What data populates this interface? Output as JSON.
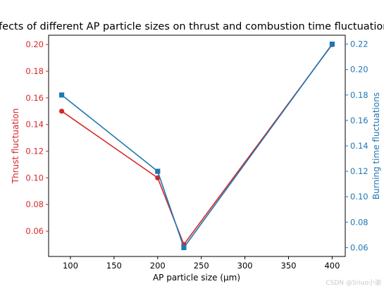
{
  "chart_data": {
    "type": "line",
    "title": "Effects of different AP particle sizes on thrust and combustion time fluctuations",
    "xlabel": "AP particle size (μm)",
    "ylabel_left": "Thrust fluctuation",
    "ylabel_right": "Burning time fluctuations",
    "xlim": [
      75,
      415
    ],
    "ylim_left": [
      0.041,
      0.207
    ],
    "ylim_right": [
      0.053,
      0.227
    ],
    "x_ticks": [
      100,
      150,
      200,
      250,
      300,
      350,
      400
    ],
    "y_left_ticks": [
      0.06,
      0.08,
      0.1,
      0.12,
      0.14,
      0.16,
      0.18,
      0.2
    ],
    "y_right_ticks": [
      0.06,
      0.08,
      0.1,
      0.12,
      0.14,
      0.16,
      0.18,
      0.2,
      0.22
    ],
    "grid": false,
    "series": [
      {
        "axis": "left",
        "color": "#d62728",
        "marker": "circle",
        "x": [
          90,
          200,
          230,
          400
        ],
        "y": [
          0.15,
          0.1,
          0.05,
          0.2
        ]
      },
      {
        "axis": "right",
        "color": "#1f77b4",
        "marker": "square",
        "x": [
          90,
          200,
          230,
          400
        ],
        "y": [
          0.18,
          0.12,
          0.06,
          0.22
        ]
      }
    ],
    "left_axis_color": "#d62728",
    "right_axis_color": "#1f77b4"
  },
  "watermark": "CSDN @Sriuo小谢"
}
